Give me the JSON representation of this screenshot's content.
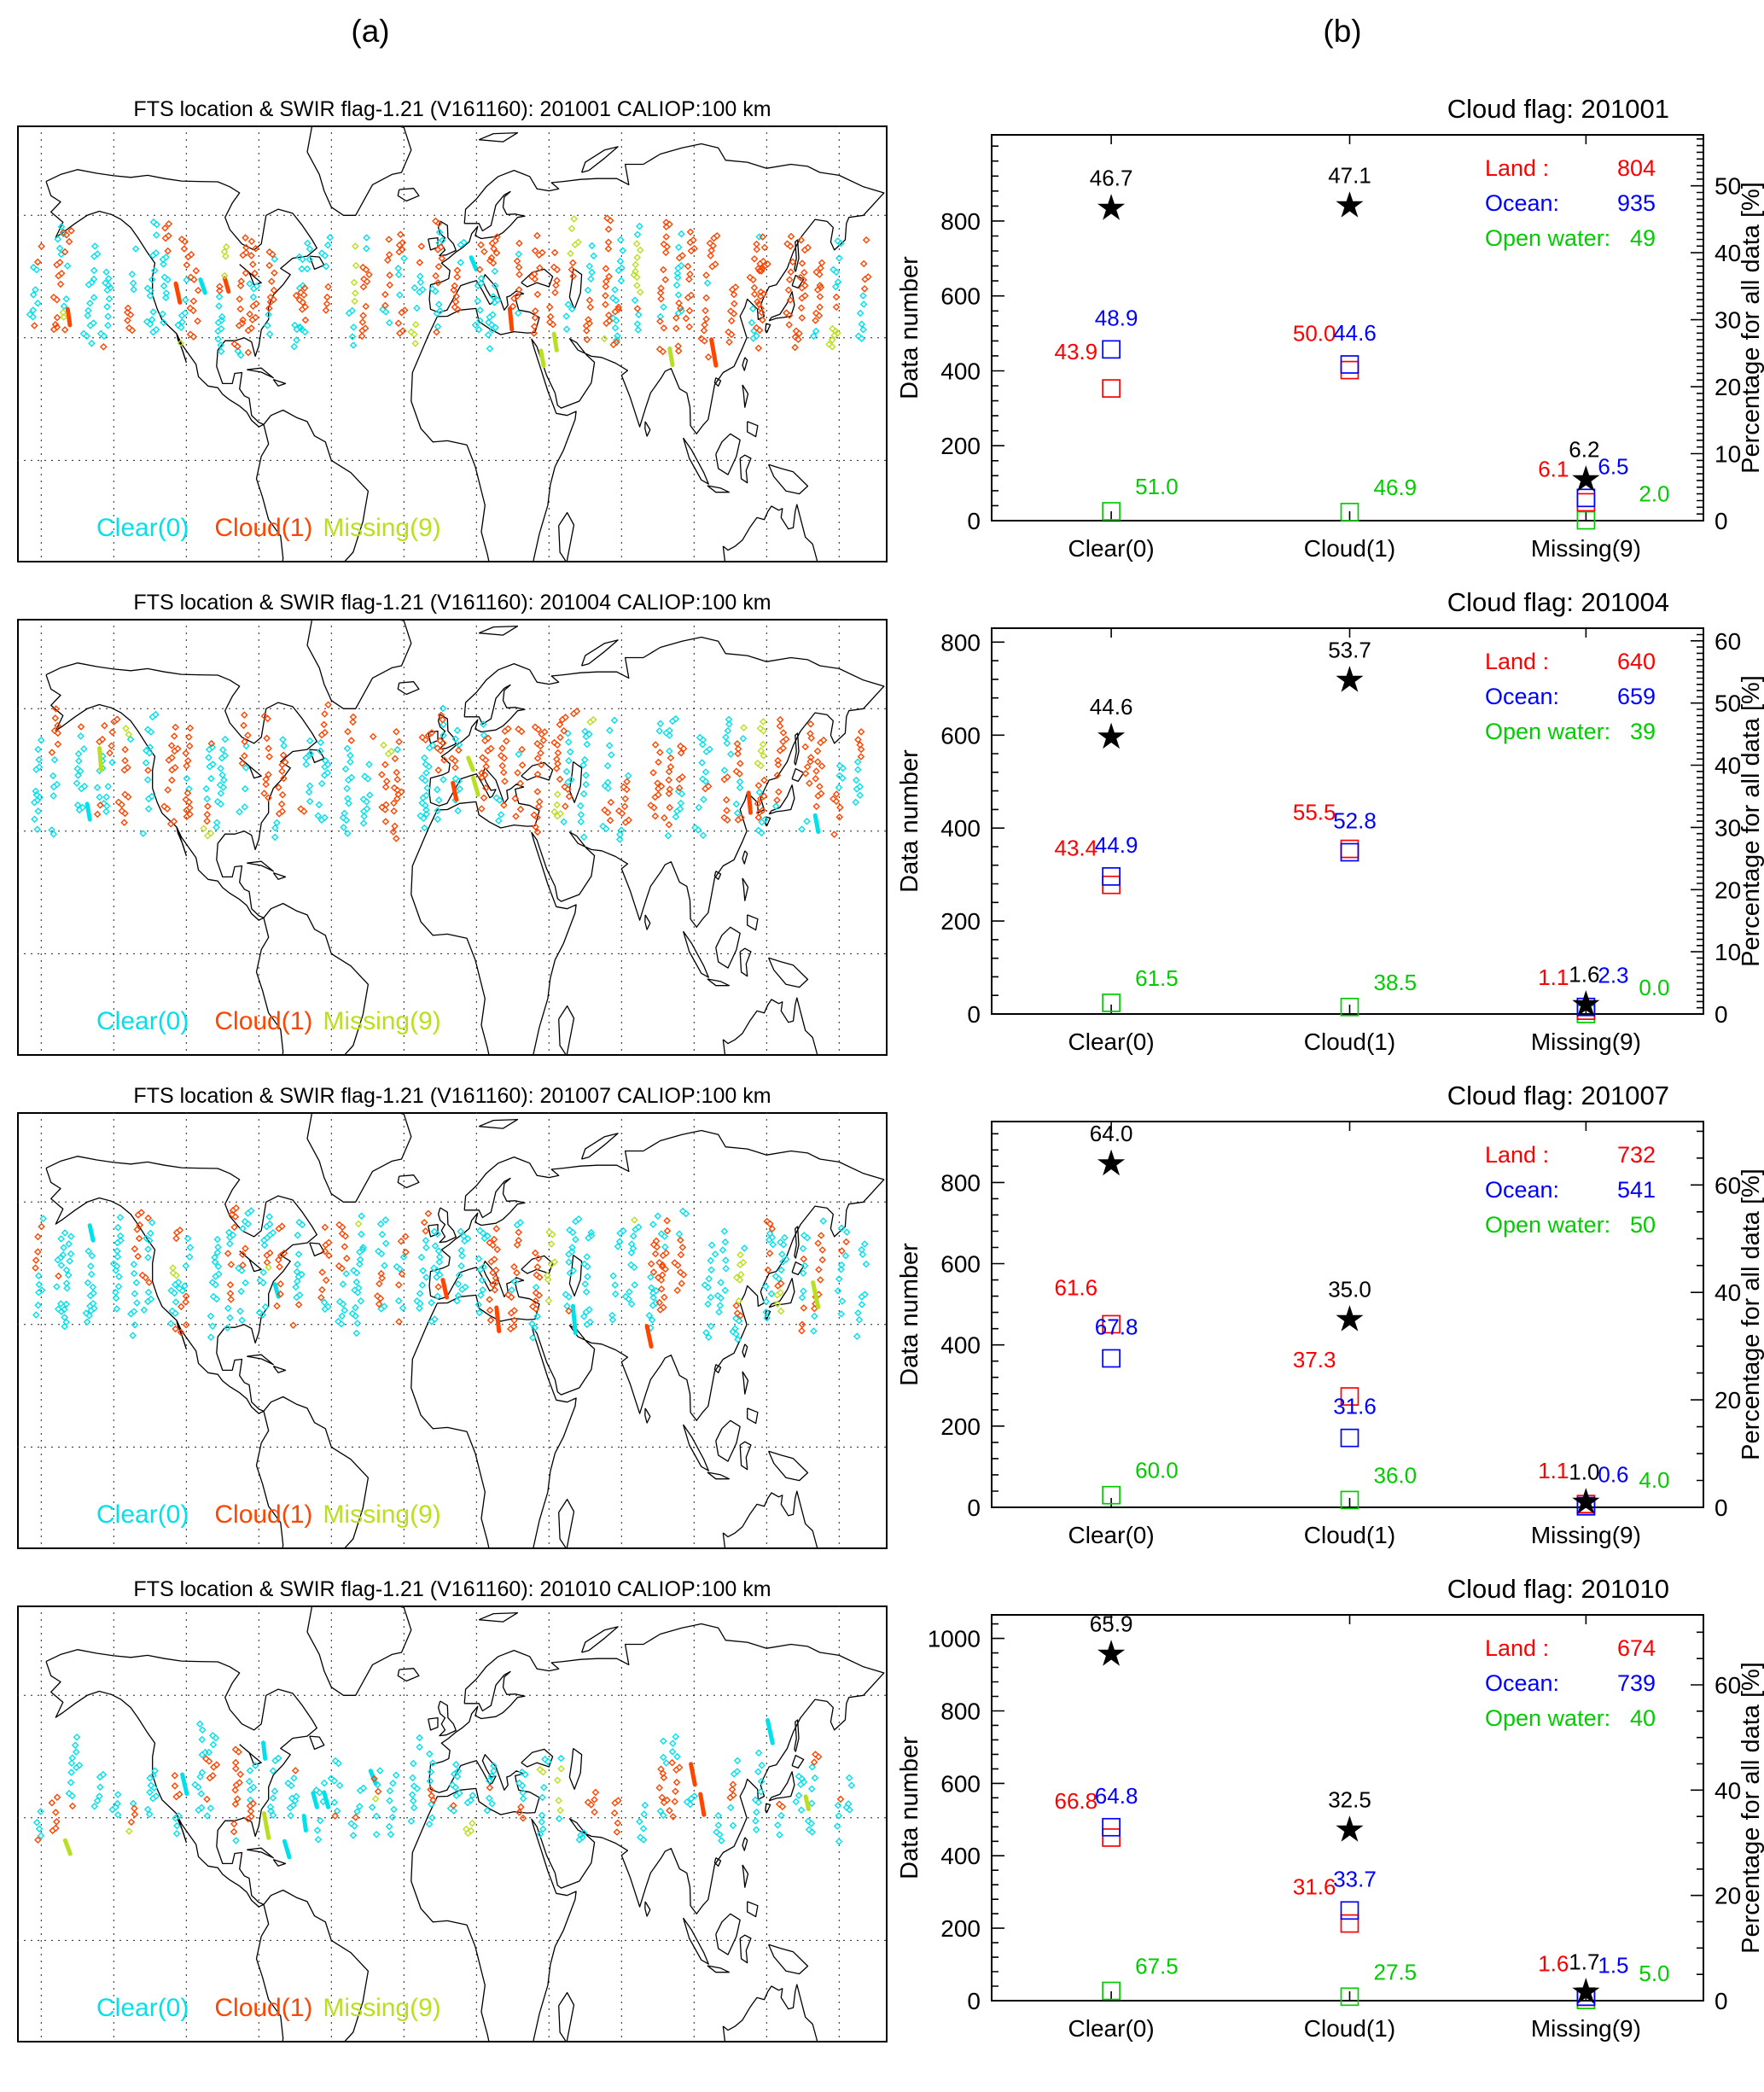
{
  "page": {
    "panel_a": "(a)",
    "panel_b": "(b)"
  },
  "colors": {
    "clear": "#00E1EC",
    "cloud": "#FF4500",
    "missing": "#B8E020",
    "land": "#FF0000",
    "ocean": "#0000FF",
    "open_water": "#00CC00",
    "all_data": "#000000",
    "coast": "#000000",
    "grid": "#222222"
  },
  "maps": [
    {
      "title": "FTS location & SWIR flag-1.21 (V161160): 201001 CALIOP:100 km",
      "legend": {
        "clear": "Clear(0)",
        "cloud": "Cloud(1)",
        "missing": "Missing(9)"
      },
      "scatter": {
        "seed": 11,
        "tracks": 46,
        "points_min": 10,
        "points_max": 26,
        "lat_min": 24,
        "lat_max": 58,
        "weights": {
          "clear": 0.47,
          "cloud": 0.47,
          "missing": 0.06
        },
        "streaks": 10
      }
    },
    {
      "title": "FTS location & SWIR flag-1.21 (V161160): 201004 CALIOP:100 km",
      "legend": {
        "clear": "Clear(0)",
        "cloud": "Cloud(1)",
        "missing": "Missing(9)"
      },
      "scatter": {
        "seed": 22,
        "tracks": 44,
        "points_min": 10,
        "points_max": 24,
        "lat_min": 26,
        "lat_max": 60,
        "weights": {
          "clear": 0.45,
          "cloud": 0.52,
          "missing": 0.03
        },
        "streaks": 7
      }
    },
    {
      "title": "FTS location & SWIR flag-1.21 (V161160): 201007 CALIOP:100 km",
      "legend": {
        "clear": "Clear(0)",
        "cloud": "Cloud(1)",
        "missing": "Missing(9)"
      },
      "scatter": {
        "seed": 33,
        "tracks": 44,
        "points_min": 10,
        "points_max": 24,
        "lat_min": 25,
        "lat_max": 57,
        "weights": {
          "clear": 0.6,
          "cloud": 0.37,
          "missing": 0.03
        },
        "streaks": 7
      }
    },
    {
      "title": "FTS location & SWIR flag-1.21 (V161160): 201010 CALIOP:100 km",
      "legend": {
        "clear": "Clear(0)",
        "cloud": "Cloud(1)",
        "missing": "Missing(9)"
      },
      "scatter": {
        "seed": 44,
        "tracks": 42,
        "points_min": 4,
        "points_max": 12,
        "lat_min": 22,
        "lat_max": 58,
        "weights": {
          "clear": 0.62,
          "cloud": 0.33,
          "missing": 0.05
        },
        "streaks": 13
      }
    }
  ],
  "chart_data": [
    {
      "type": "scatter",
      "title": "Cloud flag: 201001",
      "categories": [
        "Clear(0)",
        "Cloud(1)",
        "Missing(9)"
      ],
      "ylabel_left": "Data number",
      "ylabel_right": "Percentage for all data [%]",
      "totals": {
        "land": 804,
        "ocean": 935,
        "open_water": 49
      },
      "legend": [
        {
          "key": "land",
          "label": "Land :",
          "value": "804"
        },
        {
          "key": "ocean",
          "label": "Ocean:",
          "value": "935"
        },
        {
          "key": "open_water",
          "label": "Open water:",
          "value": "49"
        }
      ],
      "left_ticks": [
        0,
        200,
        400,
        600,
        800
      ],
      "left_max": 1030,
      "right_major": 10,
      "right_minor": 1,
      "series": [
        {
          "name": "All data",
          "marker": "star",
          "color_key": "all_data",
          "percent": [
            "46.7",
            "47.1",
            "6.2"
          ]
        },
        {
          "name": "Land",
          "marker": "square",
          "color_key": "land",
          "percent": [
            "43.9",
            "50.0",
            "6.1"
          ]
        },
        {
          "name": "Ocean",
          "marker": "square",
          "color_key": "ocean",
          "percent": [
            "48.9",
            "44.6",
            "6.5"
          ]
        },
        {
          "name": "Open water",
          "marker": "square",
          "color_key": "open_water",
          "percent": [
            "51.0",
            "46.9",
            "2.0"
          ]
        }
      ]
    },
    {
      "type": "scatter",
      "title": "Cloud flag: 201004",
      "categories": [
        "Clear(0)",
        "Cloud(1)",
        "Missing(9)"
      ],
      "ylabel_left": "Data number",
      "ylabel_right": "Percentage for all data [%]",
      "totals": {
        "land": 640,
        "ocean": 659,
        "open_water": 39
      },
      "legend": [
        {
          "key": "land",
          "label": "Land :",
          "value": "640"
        },
        {
          "key": "ocean",
          "label": "Ocean:",
          "value": "659"
        },
        {
          "key": "open_water",
          "label": "Open water:",
          "value": "39"
        }
      ],
      "left_ticks": [
        0,
        200,
        400,
        600,
        800
      ],
      "left_max": 830,
      "right_major": 10,
      "right_minor": 1,
      "series": [
        {
          "name": "All data",
          "marker": "star",
          "color_key": "all_data",
          "percent": [
            "44.6",
            "53.7",
            "1.6"
          ]
        },
        {
          "name": "Land",
          "marker": "square",
          "color_key": "land",
          "percent": [
            "43.4",
            "55.5",
            "1.1"
          ]
        },
        {
          "name": "Ocean",
          "marker": "square",
          "color_key": "ocean",
          "percent": [
            "44.9",
            "52.8",
            "2.3"
          ]
        },
        {
          "name": "Open water",
          "marker": "square",
          "color_key": "open_water",
          "percent": [
            "61.5",
            "38.5",
            "0.0"
          ]
        }
      ]
    },
    {
      "type": "scatter",
      "title": "Cloud flag: 201007",
      "categories": [
        "Clear(0)",
        "Cloud(1)",
        "Missing(9)"
      ],
      "ylabel_left": "Data number",
      "ylabel_right": "Percentage for all data [%]",
      "totals": {
        "land": 732,
        "ocean": 541,
        "open_water": 50
      },
      "legend": [
        {
          "key": "land",
          "label": "Land :",
          "value": "732"
        },
        {
          "key": "ocean",
          "label": "Ocean:",
          "value": "541"
        },
        {
          "key": "open_water",
          "label": "Open water:",
          "value": "50"
        }
      ],
      "left_ticks": [
        0,
        200,
        400,
        600,
        800
      ],
      "left_max": 950,
      "right_major": 20,
      "right_minor": 5,
      "series": [
        {
          "name": "All data",
          "marker": "star",
          "color_key": "all_data",
          "percent": [
            "64.0",
            "35.0",
            "1.0"
          ]
        },
        {
          "name": "Land",
          "marker": "square",
          "color_key": "land",
          "percent": [
            "61.6",
            "37.3",
            "1.1"
          ]
        },
        {
          "name": "Ocean",
          "marker": "square",
          "color_key": "ocean",
          "percent": [
            "67.8",
            "31.6",
            "0.6"
          ]
        },
        {
          "name": "Open water",
          "marker": "square",
          "color_key": "open_water",
          "percent": [
            "60.0",
            "36.0",
            "4.0"
          ]
        }
      ]
    },
    {
      "type": "scatter",
      "title": "Cloud flag: 201010",
      "categories": [
        "Clear(0)",
        "Cloud(1)",
        "Missing(9)"
      ],
      "ylabel_left": "Data number",
      "ylabel_right": "Percentage for all data [%]",
      "totals": {
        "land": 674,
        "ocean": 739,
        "open_water": 40
      },
      "legend": [
        {
          "key": "land",
          "label": "Land :",
          "value": "674"
        },
        {
          "key": "ocean",
          "label": "Ocean:",
          "value": "739"
        },
        {
          "key": "open_water",
          "label": "Open water:",
          "value": "40"
        }
      ],
      "left_ticks": [
        0,
        200,
        400,
        600,
        800,
        1000
      ],
      "left_max": 1065,
      "right_major": 20,
      "right_minor": 5,
      "series": [
        {
          "name": "All data",
          "marker": "star",
          "color_key": "all_data",
          "percent": [
            "65.9",
            "32.5",
            "1.7"
          ]
        },
        {
          "name": "Land",
          "marker": "square",
          "color_key": "land",
          "percent": [
            "66.8",
            "31.6",
            "1.6"
          ]
        },
        {
          "name": "Ocean",
          "marker": "square",
          "color_key": "ocean",
          "percent": [
            "64.8",
            "33.7",
            "1.5"
          ]
        },
        {
          "name": "Open water",
          "marker": "square",
          "color_key": "open_water",
          "percent": [
            "67.5",
            "27.5",
            "5.0"
          ]
        }
      ]
    }
  ]
}
